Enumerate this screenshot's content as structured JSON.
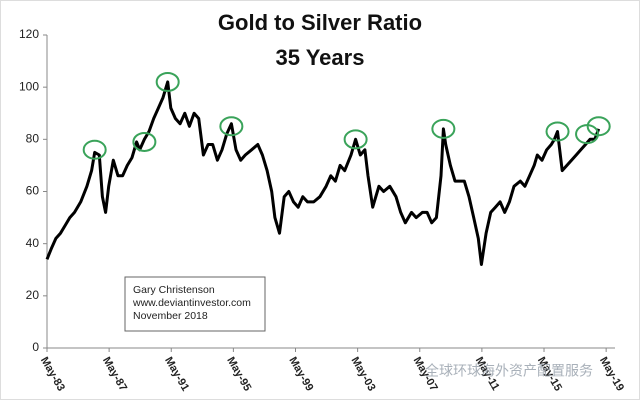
{
  "chart_data": {
    "type": "line",
    "title": "Gold to Silver Ratio",
    "subtitle": "35 Years",
    "annotation": [
      "Gary Christenson",
      "www.deviantinvestor.com",
      "November 2018"
    ],
    "watermark": "全球环球海外资产配置服务",
    "color": "#000000",
    "highlight_color": "#3aa35a",
    "xlim": [
      1983.33,
      2019.9
    ],
    "xticks": [
      {
        "value": 1983.33,
        "label": "May-83"
      },
      {
        "value": 1987.33,
        "label": "May-87"
      },
      {
        "value": 1991.33,
        "label": "May-91"
      },
      {
        "value": 1995.33,
        "label": "May-95"
      },
      {
        "value": 1999.33,
        "label": "May-99"
      },
      {
        "value": 2003.33,
        "label": "May-03"
      },
      {
        "value": 2007.33,
        "label": "May-07"
      },
      {
        "value": 2011.33,
        "label": "May-11"
      },
      {
        "value": 2015.33,
        "label": "May-15"
      },
      {
        "value": 2019.33,
        "label": "May-19"
      }
    ],
    "ylim": [
      0,
      120
    ],
    "yticks": [
      0,
      20,
      40,
      60,
      80,
      100,
      120
    ],
    "x": [
      1983.33,
      1983.6,
      1983.9,
      1984.2,
      1984.5,
      1984.8,
      1985.1,
      1985.5,
      1985.9,
      1986.2,
      1986.4,
      1986.7,
      1986.9,
      1987.1,
      1987.3,
      1987.6,
      1987.9,
      1988.2,
      1988.5,
      1988.8,
      1989.1,
      1989.3,
      1989.6,
      1989.9,
      1990.2,
      1990.5,
      1990.8,
      1991.1,
      1991.3,
      1991.6,
      1991.9,
      1992.2,
      1992.5,
      1992.8,
      1993.1,
      1993.4,
      1993.7,
      1994.0,
      1994.3,
      1994.6,
      1994.9,
      1995.2,
      1995.5,
      1995.8,
      1996.1,
      1996.5,
      1996.9,
      1997.2,
      1997.5,
      1997.8,
      1998.0,
      1998.3,
      1998.6,
      1998.9,
      1999.2,
      1999.5,
      1999.8,
      2000.1,
      2000.5,
      2000.9,
      2001.3,
      2001.6,
      2001.9,
      2002.2,
      2002.5,
      2002.9,
      2003.2,
      2003.5,
      2003.8,
      2004.0,
      2004.3,
      2004.7,
      2005.0,
      2005.4,
      2005.8,
      2006.1,
      2006.4,
      2006.8,
      2007.1,
      2007.5,
      2007.8,
      2008.1,
      2008.4,
      2008.7,
      2008.85,
      2009.0,
      2009.3,
      2009.6,
      2009.9,
      2010.2,
      2010.5,
      2010.8,
      2011.1,
      2011.3,
      2011.6,
      2011.9,
      2012.2,
      2012.5,
      2012.8,
      2013.1,
      2013.4,
      2013.8,
      2014.1,
      2014.4,
      2014.7,
      2014.9,
      2015.2,
      2015.5,
      2015.8,
      2016.0,
      2016.2,
      2016.5,
      2016.8,
      2017.1,
      2017.4,
      2017.7,
      2018.0,
      2018.3,
      2018.6,
      2018.85
    ],
    "values": [
      34,
      38,
      42,
      44,
      47,
      50,
      52,
      56,
      62,
      68,
      75,
      74,
      58,
      52,
      62,
      72,
      66,
      66,
      70,
      73,
      79,
      76,
      80,
      83,
      88,
      92,
      96,
      102,
      92,
      88,
      86,
      90,
      85,
      90,
      88,
      74,
      78,
      78,
      72,
      76,
      82,
      86,
      76,
      72,
      74,
      76,
      78,
      74,
      68,
      60,
      50,
      44,
      58,
      60,
      56,
      54,
      58,
      56,
      56,
      58,
      62,
      66,
      64,
      70,
      68,
      74,
      80,
      74,
      76,
      66,
      54,
      62,
      60,
      62,
      58,
      52,
      48,
      52,
      50,
      52,
      52,
      48,
      50,
      66,
      84,
      78,
      70,
      64,
      64,
      64,
      58,
      50,
      42,
      32,
      44,
      52,
      54,
      56,
      52,
      56,
      62,
      64,
      62,
      66,
      70,
      74,
      72,
      76,
      78,
      80,
      83,
      68,
      70,
      72,
      74,
      76,
      78,
      80,
      80,
      84
    ],
    "highlights": {
      "x": [
        1986.4,
        1989.6,
        1991.1,
        1995.2,
        2003.2,
        2008.85,
        2016.2,
        2018.1,
        2018.85
      ],
      "y": [
        76,
        79,
        102,
        85,
        80,
        84,
        83,
        82,
        85
      ]
    }
  }
}
